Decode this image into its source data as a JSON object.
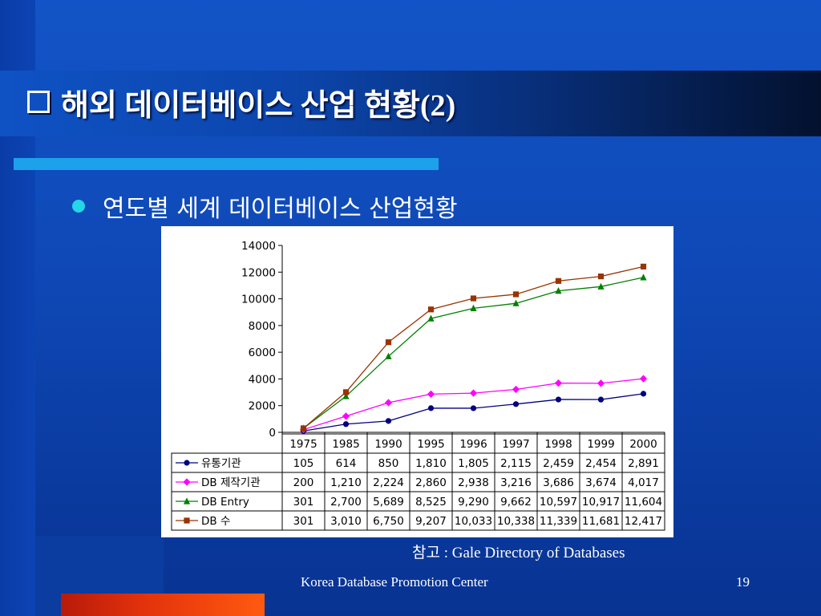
{
  "slide": {
    "title": "해외 데이터베이스 산업 현황(2)",
    "bullet": "연도별 세계 데이터베이스 산업현황",
    "source": "참고 : Gale Directory of Databases",
    "footer": "Korea Database Promotion Center",
    "page_number": "19"
  },
  "chart_data": {
    "type": "line",
    "categories": [
      "1975",
      "1985",
      "1990",
      "1995",
      "1996",
      "1997",
      "1998",
      "1999",
      "2000"
    ],
    "ylim": [
      0,
      14000
    ],
    "yticks": [
      "14000",
      "12000",
      "10000",
      "8000",
      "6000",
      "4000",
      "2000",
      "0"
    ],
    "series": [
      {
        "name": "유통기관",
        "color": "#000080",
        "marker": "circle",
        "values": [
          105,
          614,
          850,
          1810,
          1805,
          2115,
          2459,
          2454,
          2891
        ],
        "labels": [
          "105",
          "614",
          "850",
          "1,810",
          "1,805",
          "2,115",
          "2,459",
          "2,454",
          "2,891"
        ]
      },
      {
        "name": "DB 제작기관",
        "color": "#ff00ff",
        "marker": "diamond",
        "values": [
          200,
          1210,
          2224,
          2860,
          2938,
          3216,
          3686,
          3674,
          4017
        ],
        "labels": [
          "200",
          "1,210",
          "2,224",
          "2,860",
          "2,938",
          "3,216",
          "3,686",
          "3,674",
          "4,017"
        ]
      },
      {
        "name": "DB Entry",
        "color": "#008000",
        "marker": "triangle",
        "values": [
          301,
          2700,
          5689,
          8525,
          9290,
          9662,
          10597,
          10917,
          11604
        ],
        "labels": [
          "301",
          "2,700",
          "5,689",
          "8,525",
          "9,290",
          "9,662",
          "10,597",
          "10,917",
          "11,604"
        ]
      },
      {
        "name": "DB 수",
        "color": "#993300",
        "marker": "square",
        "values": [
          301,
          3010,
          6750,
          9207,
          10033,
          10338,
          11339,
          11681,
          12417
        ],
        "labels": [
          "301",
          "3,010",
          "6,750",
          "9,207",
          "10,033",
          "10,338",
          "11,339",
          "11,681",
          "12,417"
        ]
      }
    ],
    "grid": false,
    "legend": "data-table-left"
  }
}
